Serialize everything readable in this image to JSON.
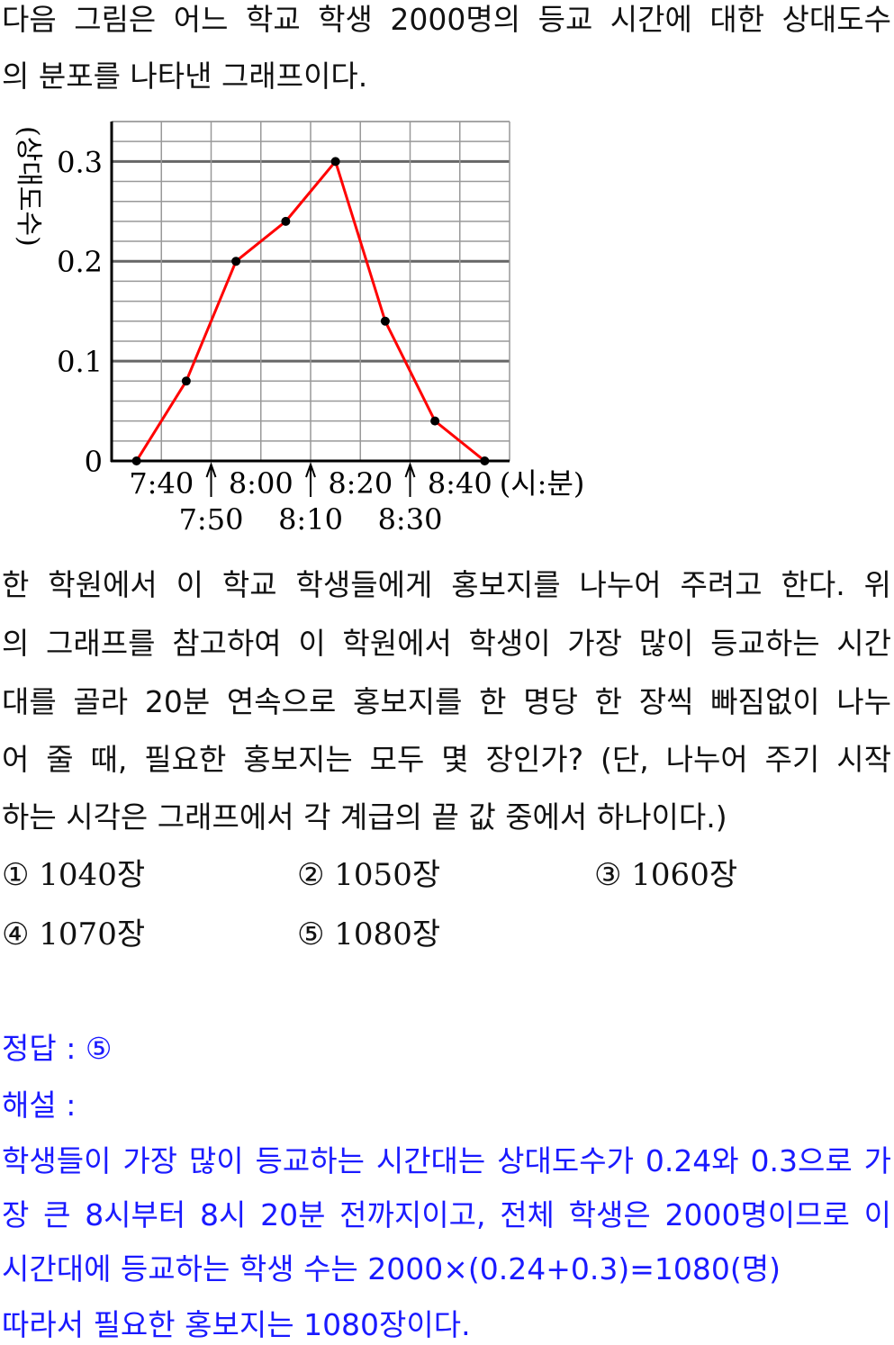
{
  "question": {
    "lines": [
      "다음 그림은 어느 학교 학생 2000명의 등교 시간에 대한 상대도수",
      "의 분포를 나타낸 그래프이다.",
      "한 학원에서 이 학교 학생들에게 홍보지를 나누어 주려고 한다. 위",
      "의 그래프를 참고하여 이 학원에서 학생이 가장 많이 등교하는 시간",
      "대를 골라 20분 연속으로 홍보지를 한 명당 한 장씩 빠짐없이 나누",
      "어 줄 때, 필요한 홍보지는 모두 몇 장인가? (단, 나누어 주기 시작",
      "하는 시각은 그래프에서 각 계급의 끝 값 중에서 하나이다.)"
    ],
    "choices": [
      {
        "mark": "①",
        "text": "1040장"
      },
      {
        "mark": "②",
        "text": "1050장"
      },
      {
        "mark": "③",
        "text": "1060장"
      },
      {
        "mark": "④",
        "text": "1070장"
      },
      {
        "mark": "⑤",
        "text": "1080장"
      }
    ]
  },
  "answer": {
    "label": "정답 : ⑤",
    "explanation_label": "해설 :",
    "lines": [
      "학생들이 가장 많이 등교하는 시간대는 상대도수가 0.24와 0.3으로 가",
      "장 큰 8시부터  8시 20분 전까지이고, 전체 학생은 2000명이므로 이",
      "시간대에 등교하는 학생 수는 2000×(0.24+0.3)=1080(명)",
      "따라서 필요한 홍보지는 1080장이다."
    ],
    "color": "#1a1aff"
  },
  "chart_data": {
    "type": "line",
    "title": "",
    "ylabel": "(상대도수)",
    "xlabel": "(시:분)",
    "x": [
      "7:35",
      "7:45",
      "7:55",
      "8:05",
      "8:15",
      "8:25",
      "8:35",
      "8:45"
    ],
    "values": [
      0,
      0.08,
      0.2,
      0.24,
      0.3,
      0.14,
      0.04,
      0
    ],
    "xlim": [
      "7:30",
      "8:50"
    ],
    "ylim": [
      0,
      0.34
    ],
    "yticks": [
      "0",
      "0.1",
      "0.2",
      "0.3"
    ],
    "xticks_upper": [
      "7:40",
      "8:00",
      "8:20",
      "8:40"
    ],
    "xticks_lower": [
      "7:50",
      "8:10",
      "8:30"
    ],
    "grid": true,
    "line_color": "#ff0000",
    "marker_color": "#000000"
  }
}
